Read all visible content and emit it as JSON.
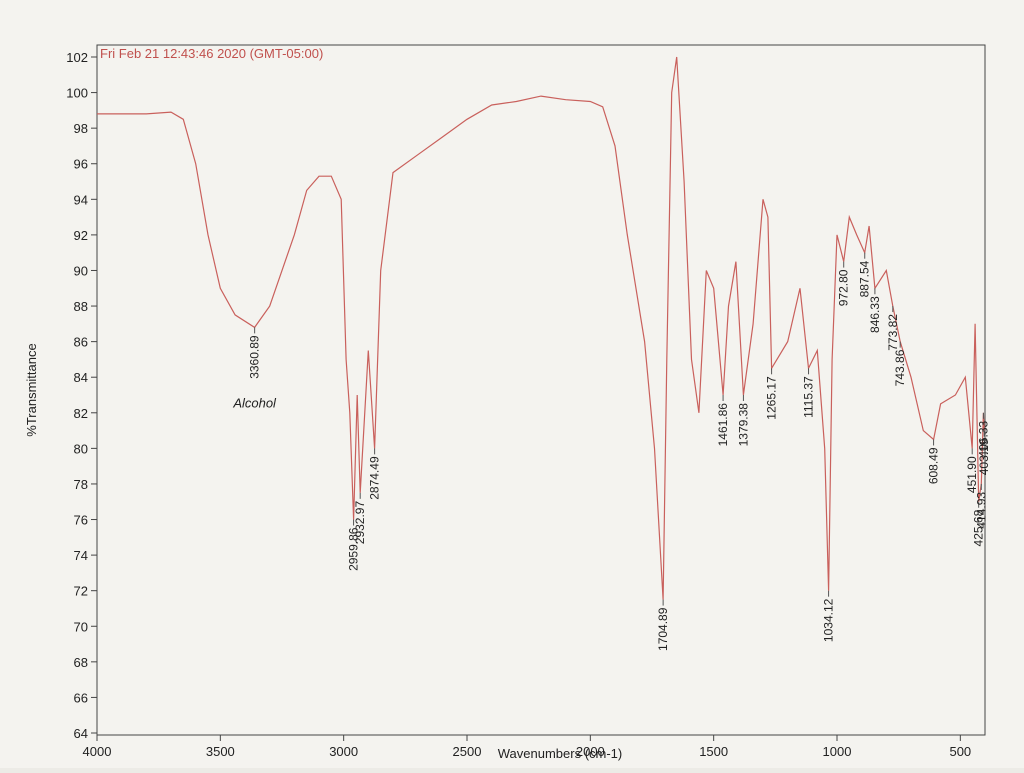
{
  "chart_data": {
    "type": "line",
    "title": "Fri Feb 21 12:43:46 2020 (GMT-05:00)",
    "x_label": "Wavenumbers (cm-1)",
    "y_label": "%Transmittance",
    "annotation": "Alcohol",
    "xlim": [
      4000,
      400
    ],
    "ylim": [
      64,
      102
    ],
    "xticks": [
      4000,
      3500,
      3000,
      2500,
      2000,
      1500,
      1000,
      500
    ],
    "yticks": [
      64,
      66,
      68,
      70,
      72,
      74,
      76,
      78,
      80,
      82,
      84,
      86,
      88,
      90,
      92,
      94,
      96,
      98,
      100,
      102
    ],
    "x": [
      4000,
      3800,
      3700,
      3650,
      3600,
      3550,
      3500,
      3440,
      3360.89,
      3300,
      3200,
      3150,
      3100,
      3050,
      3010,
      2990,
      2975,
      2959.86,
      2945,
      2932.97,
      2900,
      2874.49,
      2850,
      2800,
      2700,
      2600,
      2500,
      2400,
      2300,
      2200,
      2100,
      2000,
      1950,
      1900,
      1850,
      1780,
      1740,
      1704.89,
      1690,
      1670,
      1650,
      1620,
      1590,
      1560,
      1530,
      1500,
      1461.86,
      1440,
      1410,
      1379.38,
      1340,
      1300,
      1280,
      1265.17,
      1200,
      1150,
      1115.37,
      1080,
      1050,
      1034.12,
      1020,
      1000,
      972.8,
      950,
      920,
      887.54,
      870,
      846.33,
      800,
      773.82,
      743.86,
      700,
      650,
      608.49,
      580,
      520,
      480,
      451.9,
      440,
      425.68,
      414.93,
      406.33,
      403.19
    ],
    "series": [
      {
        "name": "%Transmittance",
        "color": "#c9605c",
        "values": [
          98.8,
          98.8,
          98.9,
          98.5,
          96,
          92,
          89,
          87.5,
          86.8,
          88,
          92,
          94.5,
          95.3,
          95.3,
          94,
          85,
          82,
          76,
          83,
          77.5,
          85.5,
          80,
          90,
          95.5,
          96.5,
          97.5,
          98.5,
          99.3,
          99.5,
          99.8,
          99.6,
          99.5,
          99.2,
          97,
          92,
          86,
          80,
          71.5,
          85,
          100,
          102,
          95,
          85,
          82,
          90,
          89,
          83,
          88,
          90.5,
          83,
          87,
          94,
          93,
          84.5,
          86,
          89,
          84.5,
          85.5,
          80,
          72,
          85,
          92,
          90.5,
          93,
          92,
          91,
          92.5,
          89,
          90,
          88,
          86,
          84,
          81,
          80.5,
          82.5,
          83,
          84,
          80,
          87,
          77,
          78,
          82,
          81
        ]
      }
    ],
    "peaks": {
      "x": [
        3360.89,
        2959.86,
        2932.97,
        2874.49,
        1704.89,
        1461.86,
        1379.38,
        1265.17,
        1115.37,
        1034.12,
        972.8,
        887.54,
        846.33,
        773.82,
        743.86,
        608.49,
        451.9,
        425.68,
        414.93,
        406.33,
        403.19
      ],
      "y": [
        86.8,
        76,
        77.5,
        80,
        71.5,
        83,
        83,
        84.5,
        84.5,
        72,
        90.5,
        91,
        89,
        88,
        86,
        80.5,
        80,
        77,
        78,
        82,
        81
      ],
      "value_labels": [
        "3360.89",
        "2959.86",
        "2932.97",
        "2874.49",
        "1704.89",
        "1461.86",
        "1379.38",
        "1265.17",
        "1115.37",
        "1034.12",
        "972.80",
        "887.54",
        "846.33",
        "773.82",
        "743.86",
        "608.49",
        "451.90",
        "425.68",
        "414.93",
        "406.33",
        "403.19"
      ]
    }
  }
}
